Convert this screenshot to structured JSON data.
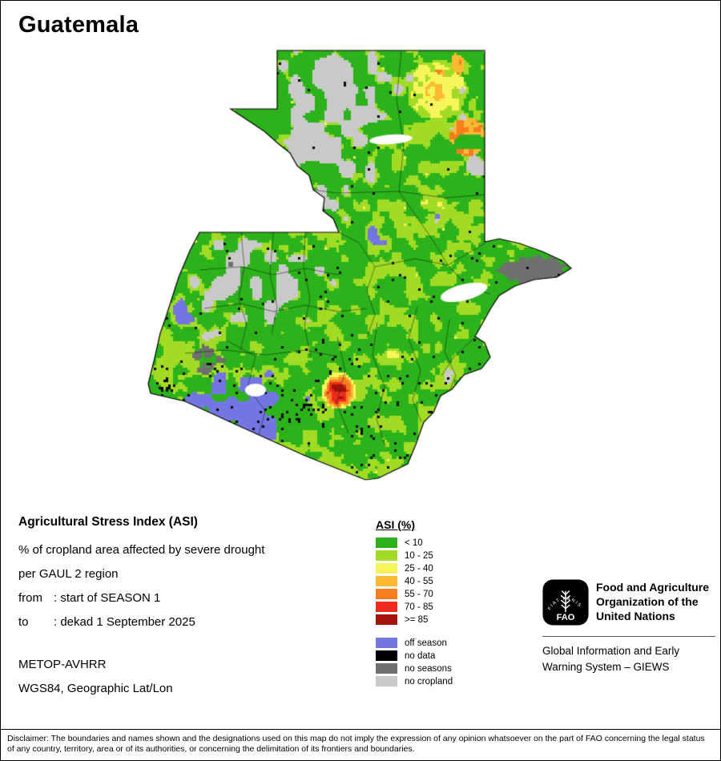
{
  "page": {
    "title": "Guatemala"
  },
  "info": {
    "heading": "Agricultural Stress Index (ASI)",
    "line1": "% of cropland area affected by severe drought",
    "line2": "per GAUL 2 region",
    "from_label": "from",
    "from_value": ": start of SEASON 1",
    "to_label": "to",
    "to_value": ": dekad 1 September 2025",
    "sensor": "METOP-AVHRR",
    "projection": "WGS84, Geographic Lat/Lon"
  },
  "legend": {
    "title": "ASI (%)",
    "asi_items": [
      {
        "key": "lt10",
        "label": "< 10",
        "color": "#2CB31C"
      },
      {
        "key": "r10_25",
        "label": "10 - 25",
        "color": "#A2DB24"
      },
      {
        "key": "r25_40",
        "label": "25 - 40",
        "color": "#F8F55C"
      },
      {
        "key": "r40_55",
        "label": "40 - 55",
        "color": "#FBBA32"
      },
      {
        "key": "r55_70",
        "label": "55 - 70",
        "color": "#F87D1E"
      },
      {
        "key": "r70_85",
        "label": "70 - 85",
        "color": "#EE2A1C"
      },
      {
        "key": "ge85",
        "label": ">= 85",
        "color": "#A31309"
      }
    ],
    "season_items": [
      {
        "key": "off",
        "label": "off season",
        "color": "#7376E2"
      },
      {
        "key": "nodata",
        "label": "no data",
        "color": "#000000"
      },
      {
        "key": "noseasons",
        "label": "no seasons",
        "color": "#6F6F6F"
      },
      {
        "key": "nocropland",
        "label": "no cropland",
        "color": "#C9C9C9"
      }
    ]
  },
  "source": {
    "logo_text": "FAO",
    "logo_motto": "FIAT PANIS",
    "org_line1": "Food and Agriculture",
    "org_line2": "Organization of the",
    "org_line3": "United Nations",
    "giews_line1": "Global Information and Early",
    "giews_line2": "Warning System – GIEWS"
  },
  "footer": {
    "disclaimer": "Disclaimer: The boundaries and names shown and the designations used on this map do not imply the expression of any opinion whatsoever on the part of FAO concerning the legal status of any country, territory, area or of its authorities, or concerning the delimitation of its frontiers and boundaries."
  }
}
